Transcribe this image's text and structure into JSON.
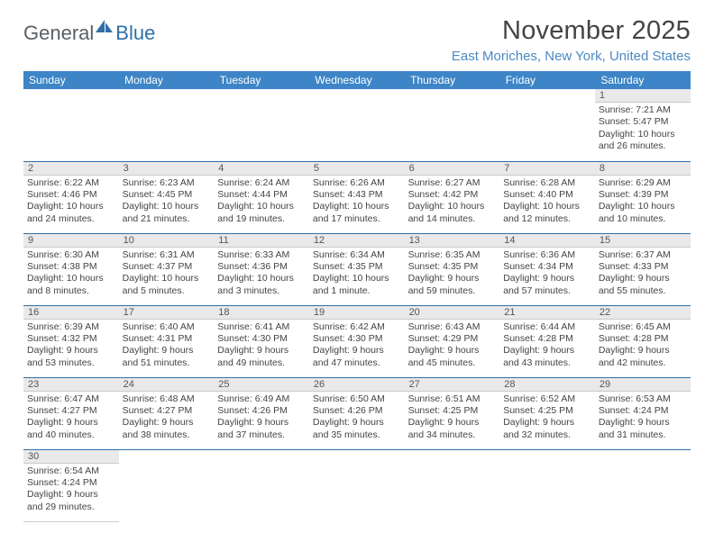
{
  "brand": {
    "part1": "General",
    "part2": "Blue"
  },
  "title": "November 2025",
  "location": "East Moriches, New York, United States",
  "weekdays": [
    "Sunday",
    "Monday",
    "Tuesday",
    "Wednesday",
    "Thursday",
    "Friday",
    "Saturday"
  ],
  "colors": {
    "header_bar": "#3d85c6",
    "row_divider": "#2f6fa8",
    "location_text": "#4a8ac2",
    "daynum_bg": "#e9e9e9",
    "logo_sail": "#2f6fa8"
  },
  "weeks": [
    [
      {
        "n": "",
        "sunrise": "",
        "sunset": "",
        "daylight1": "",
        "daylight2": ""
      },
      {
        "n": "",
        "sunrise": "",
        "sunset": "",
        "daylight1": "",
        "daylight2": ""
      },
      {
        "n": "",
        "sunrise": "",
        "sunset": "",
        "daylight1": "",
        "daylight2": ""
      },
      {
        "n": "",
        "sunrise": "",
        "sunset": "",
        "daylight1": "",
        "daylight2": ""
      },
      {
        "n": "",
        "sunrise": "",
        "sunset": "",
        "daylight1": "",
        "daylight2": ""
      },
      {
        "n": "",
        "sunrise": "",
        "sunset": "",
        "daylight1": "",
        "daylight2": ""
      },
      {
        "n": "1",
        "sunrise": "Sunrise: 7:21 AM",
        "sunset": "Sunset: 5:47 PM",
        "daylight1": "Daylight: 10 hours",
        "daylight2": "and 26 minutes."
      }
    ],
    [
      {
        "n": "2",
        "sunrise": "Sunrise: 6:22 AM",
        "sunset": "Sunset: 4:46 PM",
        "daylight1": "Daylight: 10 hours",
        "daylight2": "and 24 minutes."
      },
      {
        "n": "3",
        "sunrise": "Sunrise: 6:23 AM",
        "sunset": "Sunset: 4:45 PM",
        "daylight1": "Daylight: 10 hours",
        "daylight2": "and 21 minutes."
      },
      {
        "n": "4",
        "sunrise": "Sunrise: 6:24 AM",
        "sunset": "Sunset: 4:44 PM",
        "daylight1": "Daylight: 10 hours",
        "daylight2": "and 19 minutes."
      },
      {
        "n": "5",
        "sunrise": "Sunrise: 6:26 AM",
        "sunset": "Sunset: 4:43 PM",
        "daylight1": "Daylight: 10 hours",
        "daylight2": "and 17 minutes."
      },
      {
        "n": "6",
        "sunrise": "Sunrise: 6:27 AM",
        "sunset": "Sunset: 4:42 PM",
        "daylight1": "Daylight: 10 hours",
        "daylight2": "and 14 minutes."
      },
      {
        "n": "7",
        "sunrise": "Sunrise: 6:28 AM",
        "sunset": "Sunset: 4:40 PM",
        "daylight1": "Daylight: 10 hours",
        "daylight2": "and 12 minutes."
      },
      {
        "n": "8",
        "sunrise": "Sunrise: 6:29 AM",
        "sunset": "Sunset: 4:39 PM",
        "daylight1": "Daylight: 10 hours",
        "daylight2": "and 10 minutes."
      }
    ],
    [
      {
        "n": "9",
        "sunrise": "Sunrise: 6:30 AM",
        "sunset": "Sunset: 4:38 PM",
        "daylight1": "Daylight: 10 hours",
        "daylight2": "and 8 minutes."
      },
      {
        "n": "10",
        "sunrise": "Sunrise: 6:31 AM",
        "sunset": "Sunset: 4:37 PM",
        "daylight1": "Daylight: 10 hours",
        "daylight2": "and 5 minutes."
      },
      {
        "n": "11",
        "sunrise": "Sunrise: 6:33 AM",
        "sunset": "Sunset: 4:36 PM",
        "daylight1": "Daylight: 10 hours",
        "daylight2": "and 3 minutes."
      },
      {
        "n": "12",
        "sunrise": "Sunrise: 6:34 AM",
        "sunset": "Sunset: 4:35 PM",
        "daylight1": "Daylight: 10 hours",
        "daylight2": "and 1 minute."
      },
      {
        "n": "13",
        "sunrise": "Sunrise: 6:35 AM",
        "sunset": "Sunset: 4:35 PM",
        "daylight1": "Daylight: 9 hours",
        "daylight2": "and 59 minutes."
      },
      {
        "n": "14",
        "sunrise": "Sunrise: 6:36 AM",
        "sunset": "Sunset: 4:34 PM",
        "daylight1": "Daylight: 9 hours",
        "daylight2": "and 57 minutes."
      },
      {
        "n": "15",
        "sunrise": "Sunrise: 6:37 AM",
        "sunset": "Sunset: 4:33 PM",
        "daylight1": "Daylight: 9 hours",
        "daylight2": "and 55 minutes."
      }
    ],
    [
      {
        "n": "16",
        "sunrise": "Sunrise: 6:39 AM",
        "sunset": "Sunset: 4:32 PM",
        "daylight1": "Daylight: 9 hours",
        "daylight2": "and 53 minutes."
      },
      {
        "n": "17",
        "sunrise": "Sunrise: 6:40 AM",
        "sunset": "Sunset: 4:31 PM",
        "daylight1": "Daylight: 9 hours",
        "daylight2": "and 51 minutes."
      },
      {
        "n": "18",
        "sunrise": "Sunrise: 6:41 AM",
        "sunset": "Sunset: 4:30 PM",
        "daylight1": "Daylight: 9 hours",
        "daylight2": "and 49 minutes."
      },
      {
        "n": "19",
        "sunrise": "Sunrise: 6:42 AM",
        "sunset": "Sunset: 4:30 PM",
        "daylight1": "Daylight: 9 hours",
        "daylight2": "and 47 minutes."
      },
      {
        "n": "20",
        "sunrise": "Sunrise: 6:43 AM",
        "sunset": "Sunset: 4:29 PM",
        "daylight1": "Daylight: 9 hours",
        "daylight2": "and 45 minutes."
      },
      {
        "n": "21",
        "sunrise": "Sunrise: 6:44 AM",
        "sunset": "Sunset: 4:28 PM",
        "daylight1": "Daylight: 9 hours",
        "daylight2": "and 43 minutes."
      },
      {
        "n": "22",
        "sunrise": "Sunrise: 6:45 AM",
        "sunset": "Sunset: 4:28 PM",
        "daylight1": "Daylight: 9 hours",
        "daylight2": "and 42 minutes."
      }
    ],
    [
      {
        "n": "23",
        "sunrise": "Sunrise: 6:47 AM",
        "sunset": "Sunset: 4:27 PM",
        "daylight1": "Daylight: 9 hours",
        "daylight2": "and 40 minutes."
      },
      {
        "n": "24",
        "sunrise": "Sunrise: 6:48 AM",
        "sunset": "Sunset: 4:27 PM",
        "daylight1": "Daylight: 9 hours",
        "daylight2": "and 38 minutes."
      },
      {
        "n": "25",
        "sunrise": "Sunrise: 6:49 AM",
        "sunset": "Sunset: 4:26 PM",
        "daylight1": "Daylight: 9 hours",
        "daylight2": "and 37 minutes."
      },
      {
        "n": "26",
        "sunrise": "Sunrise: 6:50 AM",
        "sunset": "Sunset: 4:26 PM",
        "daylight1": "Daylight: 9 hours",
        "daylight2": "and 35 minutes."
      },
      {
        "n": "27",
        "sunrise": "Sunrise: 6:51 AM",
        "sunset": "Sunset: 4:25 PM",
        "daylight1": "Daylight: 9 hours",
        "daylight2": "and 34 minutes."
      },
      {
        "n": "28",
        "sunrise": "Sunrise: 6:52 AM",
        "sunset": "Sunset: 4:25 PM",
        "daylight1": "Daylight: 9 hours",
        "daylight2": "and 32 minutes."
      },
      {
        "n": "29",
        "sunrise": "Sunrise: 6:53 AM",
        "sunset": "Sunset: 4:24 PM",
        "daylight1": "Daylight: 9 hours",
        "daylight2": "and 31 minutes."
      }
    ],
    [
      {
        "n": "30",
        "sunrise": "Sunrise: 6:54 AM",
        "sunset": "Sunset: 4:24 PM",
        "daylight1": "Daylight: 9 hours",
        "daylight2": "and 29 minutes."
      },
      {
        "n": "",
        "sunrise": "",
        "sunset": "",
        "daylight1": "",
        "daylight2": ""
      },
      {
        "n": "",
        "sunrise": "",
        "sunset": "",
        "daylight1": "",
        "daylight2": ""
      },
      {
        "n": "",
        "sunrise": "",
        "sunset": "",
        "daylight1": "",
        "daylight2": ""
      },
      {
        "n": "",
        "sunrise": "",
        "sunset": "",
        "daylight1": "",
        "daylight2": ""
      },
      {
        "n": "",
        "sunrise": "",
        "sunset": "",
        "daylight1": "",
        "daylight2": ""
      },
      {
        "n": "",
        "sunrise": "",
        "sunset": "",
        "daylight1": "",
        "daylight2": ""
      }
    ]
  ]
}
